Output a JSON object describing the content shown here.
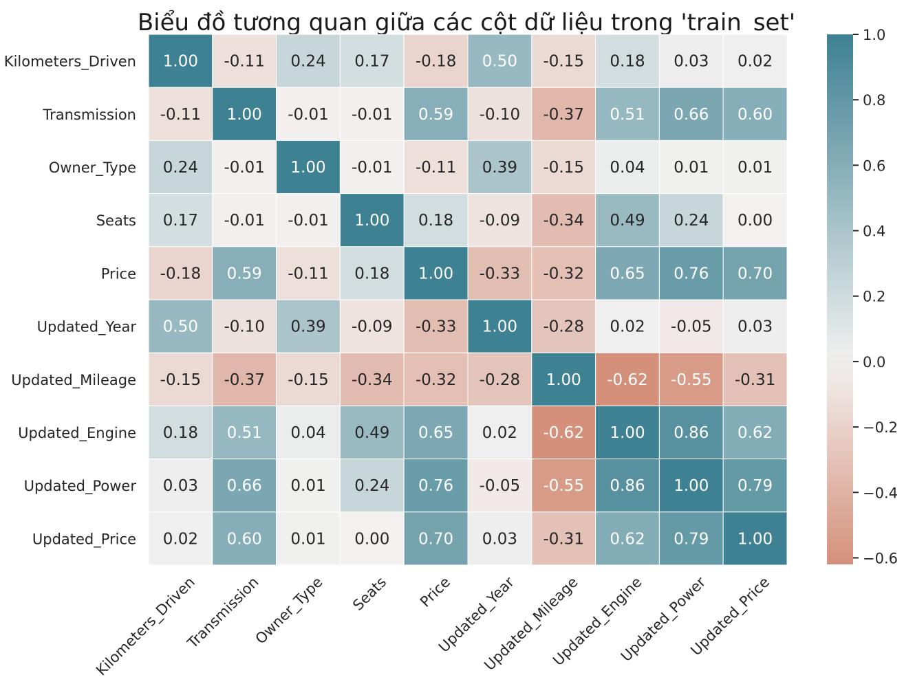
{
  "chart_data": {
    "type": "heatmap",
    "title": "Biểu đồ tương quan giữa các cột dữ liệu trong 'train_set'",
    "xlabel": "",
    "ylabel": "",
    "rows": [
      "Kilometers_Driven",
      "Transmission",
      "Owner_Type",
      "Seats",
      "Price",
      "Updated_Year",
      "Updated_Mileage",
      "Updated_Engine",
      "Updated_Power",
      "Updated_Price"
    ],
    "columns": [
      "Kilometers_Driven",
      "Transmission",
      "Owner_Type",
      "Seats",
      "Price",
      "Updated_Year",
      "Updated_Mileage",
      "Updated_Engine",
      "Updated_Power",
      "Updated_Price"
    ],
    "values": [
      [
        1.0,
        -0.11,
        0.24,
        0.17,
        -0.18,
        0.5,
        -0.15,
        0.18,
        0.03,
        0.02
      ],
      [
        -0.11,
        1.0,
        -0.01,
        -0.01,
        0.59,
        -0.1,
        -0.37,
        0.51,
        0.66,
        0.6
      ],
      [
        0.24,
        -0.01,
        1.0,
        -0.01,
        -0.11,
        0.39,
        -0.15,
        0.04,
        0.01,
        0.01
      ],
      [
        0.17,
        -0.01,
        -0.01,
        1.0,
        0.18,
        -0.09,
        -0.34,
        0.49,
        0.24,
        0.0
      ],
      [
        -0.18,
        0.59,
        -0.11,
        0.18,
        1.0,
        -0.33,
        -0.32,
        0.65,
        0.76,
        0.7
      ],
      [
        0.5,
        -0.1,
        0.39,
        -0.09,
        -0.33,
        1.0,
        -0.28,
        0.02,
        -0.05,
        0.03
      ],
      [
        -0.15,
        -0.37,
        -0.15,
        -0.34,
        -0.32,
        -0.28,
        1.0,
        -0.62,
        -0.55,
        -0.31
      ],
      [
        0.18,
        0.51,
        0.04,
        0.49,
        0.65,
        0.02,
        -0.62,
        1.0,
        0.86,
        0.62
      ],
      [
        0.03,
        0.66,
        0.01,
        0.24,
        0.76,
        -0.05,
        -0.55,
        0.86,
        1.0,
        0.79
      ],
      [
        0.02,
        0.6,
        0.01,
        0.0,
        0.7,
        0.03,
        -0.31,
        0.62,
        0.79,
        1.0
      ]
    ],
    "annotation_format": "0.00",
    "colormap": {
      "negative": "#d4907b",
      "center": "#f2f1f0",
      "positive": "#3e8192"
    },
    "vmin": -0.62,
    "vmax": 1.0,
    "colorbar_ticks": [
      "1.0",
      "0.8",
      "0.6",
      "0.4",
      "0.2",
      "0.0",
      "−0.2",
      "−0.4",
      "−0.6"
    ],
    "colorbar_tick_values": [
      1.0,
      0.8,
      0.6,
      0.4,
      0.2,
      0.0,
      -0.2,
      -0.4,
      -0.6
    ],
    "grid": true,
    "legend": "colorbar-right"
  }
}
